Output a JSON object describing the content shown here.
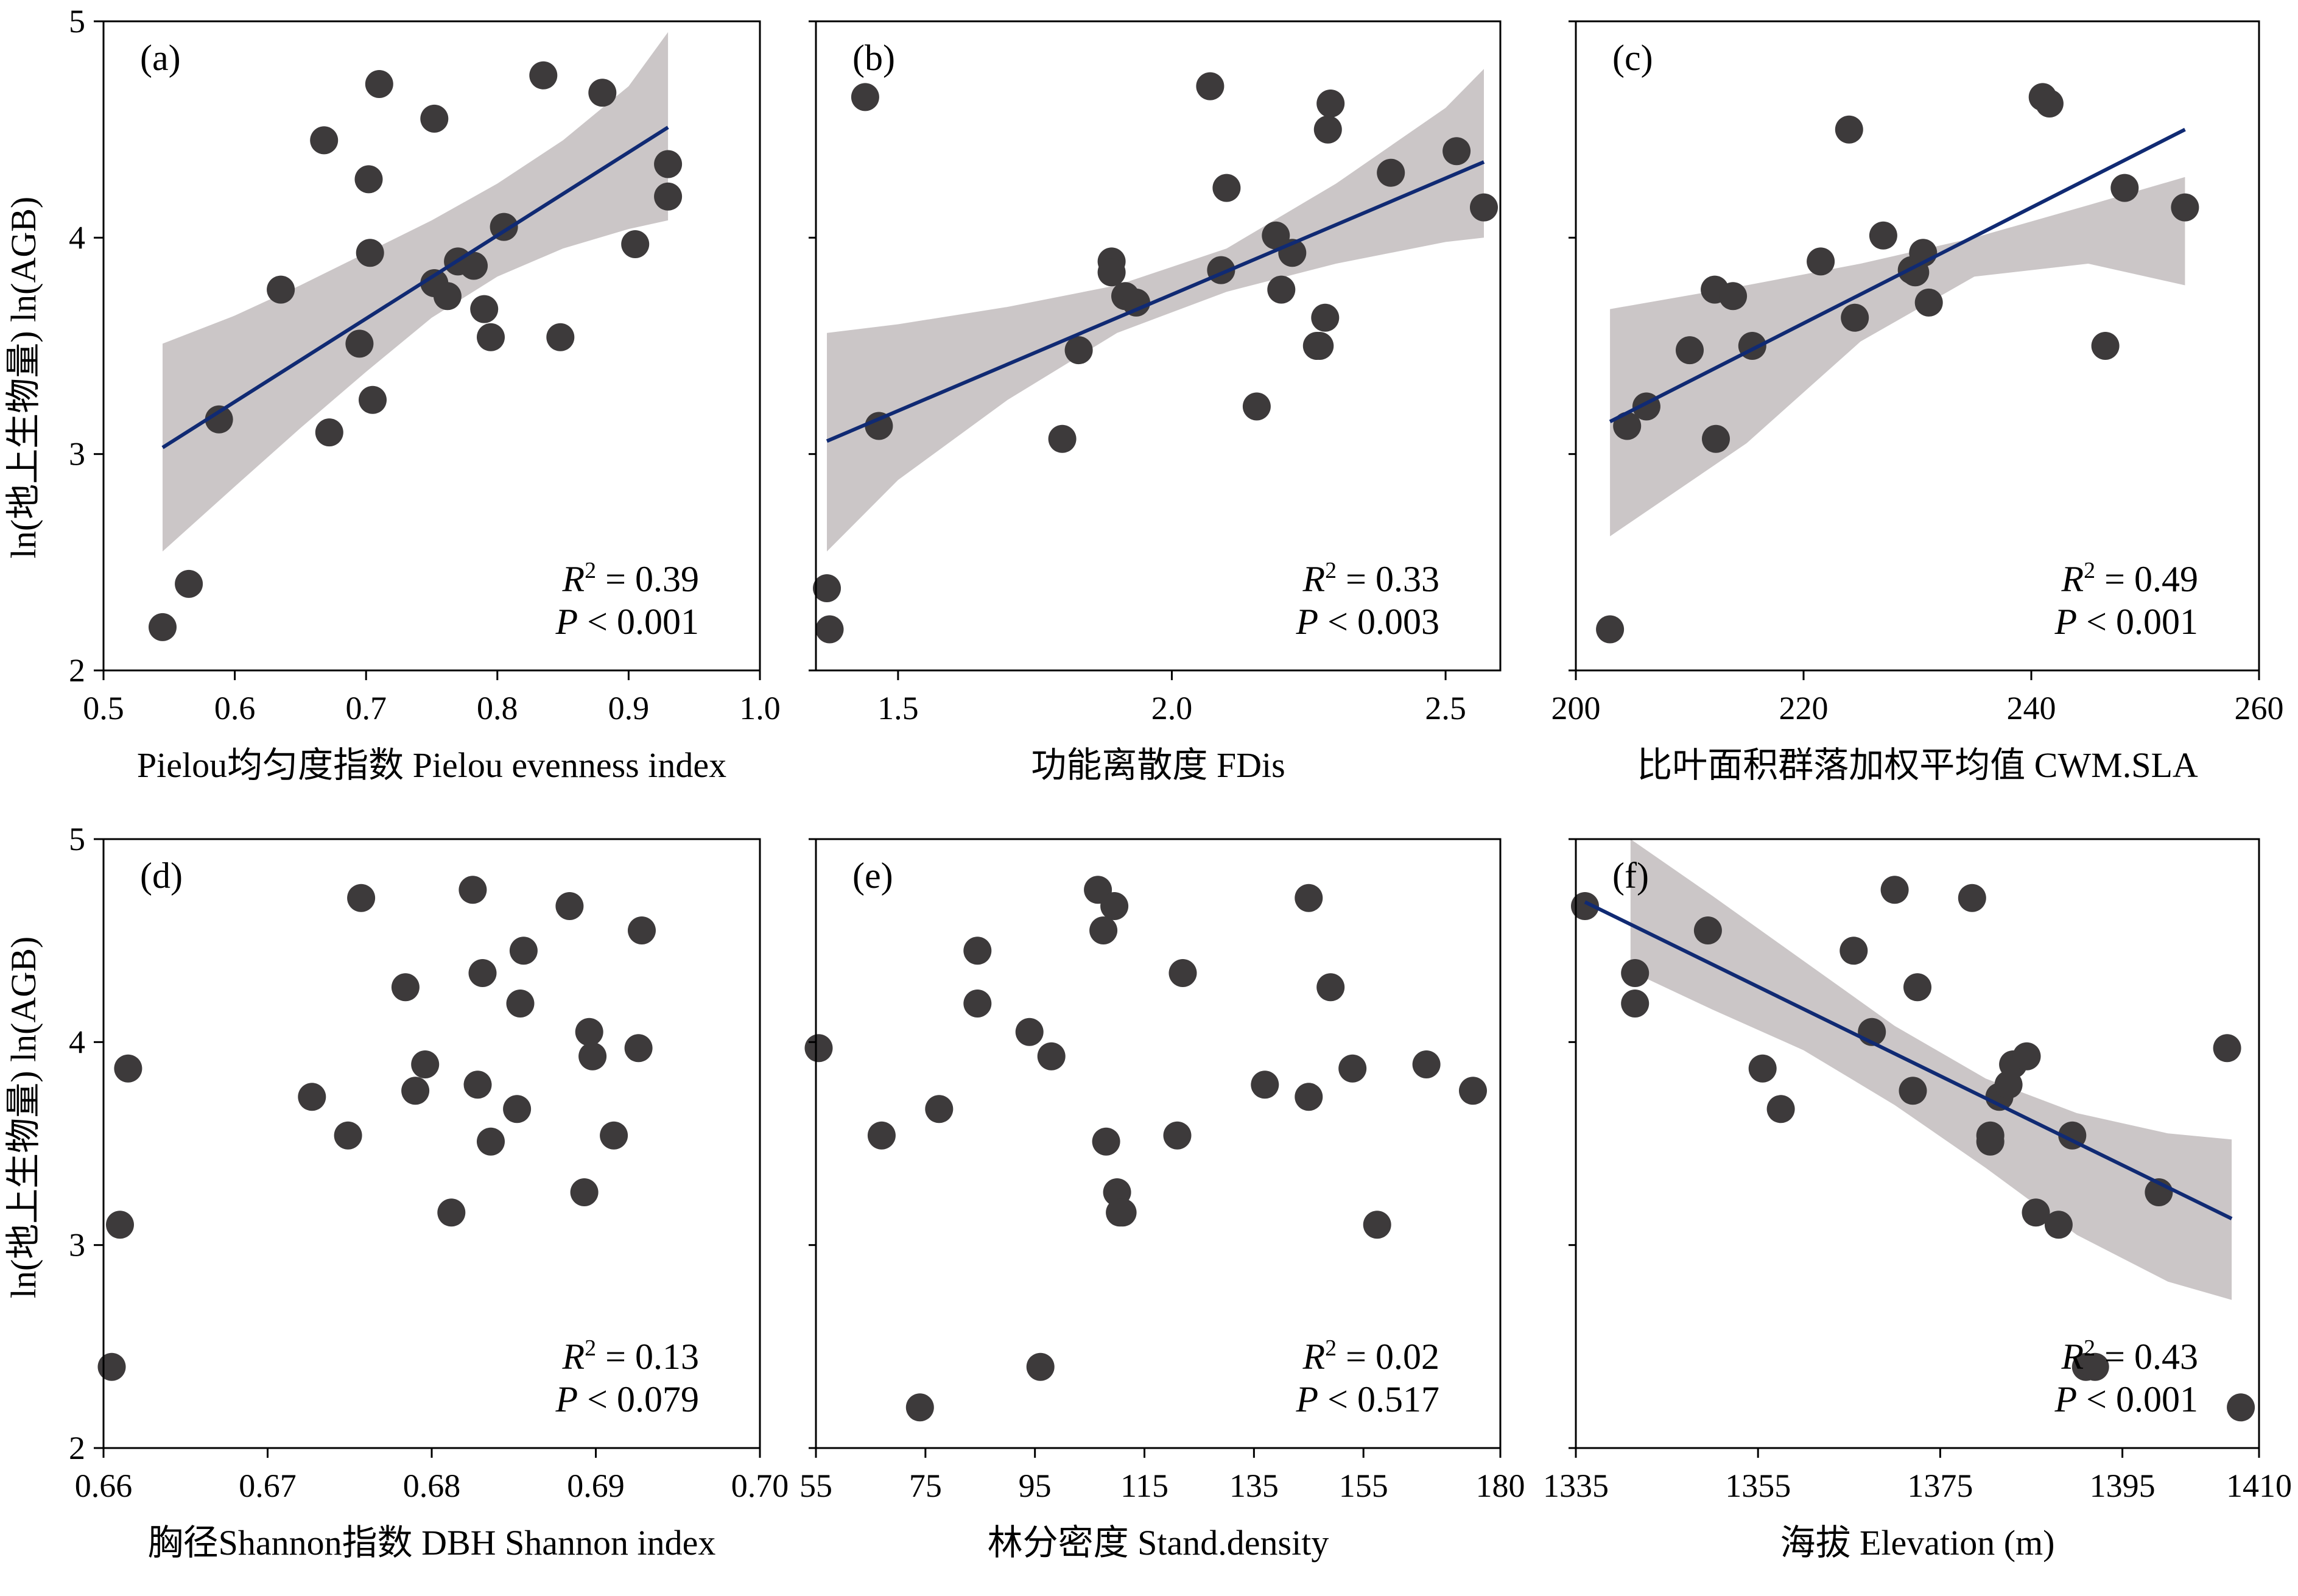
{
  "y_axis_label": "ln(地上生物量) ln(AGB)",
  "colors": {
    "point": "#3d3a3b",
    "line": "#102a73",
    "band": "#cbc6c7",
    "axis": "#000000"
  },
  "chart_data": [
    {
      "type": "scatter",
      "panel_label": "(a)",
      "xlabel": "Pielou均匀度指数 Pielou evenness index",
      "xlim": [
        0.5,
        1.0
      ],
      "xticks": [
        "0.5",
        "0.6",
        "0.7",
        "0.8",
        "0.9",
        "1.0"
      ],
      "ylim": [
        2,
        5
      ],
      "yticks": [
        "2",
        "3",
        "4",
        "5"
      ],
      "x": [
        0.545,
        0.565,
        0.588,
        0.635,
        0.668,
        0.672,
        0.695,
        0.702,
        0.703,
        0.705,
        0.71,
        0.752,
        0.752,
        0.762,
        0.77,
        0.782,
        0.79,
        0.795,
        0.805,
        0.835,
        0.848,
        0.88,
        0.905,
        0.93,
        0.93
      ],
      "y": [
        2.2,
        2.4,
        3.16,
        3.76,
        4.45,
        3.1,
        3.51,
        4.27,
        3.93,
        3.25,
        4.71,
        4.55,
        3.79,
        3.73,
        3.89,
        3.87,
        3.67,
        3.54,
        4.05,
        4.75,
        3.54,
        4.67,
        3.97,
        4.34,
        4.19
      ],
      "fit": {
        "x": [
          0.545,
          0.93
        ],
        "y": [
          3.03,
          4.51
        ]
      },
      "band_upper": [
        [
          0.545,
          3.51
        ],
        [
          0.6,
          3.64
        ],
        [
          0.65,
          3.78
        ],
        [
          0.7,
          3.93
        ],
        [
          0.75,
          4.08
        ],
        [
          0.8,
          4.25
        ],
        [
          0.85,
          4.45
        ],
        [
          0.9,
          4.7
        ],
        [
          0.93,
          4.95
        ]
      ],
      "band_lower": [
        [
          0.545,
          2.55
        ],
        [
          0.6,
          2.85
        ],
        [
          0.65,
          3.12
        ],
        [
          0.7,
          3.38
        ],
        [
          0.75,
          3.63
        ],
        [
          0.8,
          3.82
        ],
        [
          0.85,
          3.95
        ],
        [
          0.9,
          4.04
        ],
        [
          0.93,
          4.08
        ]
      ],
      "r2": "0.39",
      "p": "0.001"
    },
    {
      "type": "scatter",
      "panel_label": "(b)",
      "xlabel": "功能离散度 FDis",
      "xlim": [
        1.35,
        2.6
      ],
      "xticks": [
        "1.5",
        "2.0",
        "2.5"
      ],
      "ylim": [
        2,
        5
      ],
      "yticks": [],
      "x": [
        1.37,
        1.375,
        1.44,
        1.465,
        1.8,
        1.83,
        1.89,
        1.89,
        1.915,
        1.935,
        2.07,
        2.09,
        2.1,
        2.155,
        2.19,
        2.2,
        2.22,
        2.265,
        2.27,
        2.28,
        2.285,
        2.29,
        2.4,
        2.52,
        2.57
      ],
      "y": [
        2.38,
        2.19,
        4.65,
        3.13,
        3.07,
        3.48,
        3.89,
        3.84,
        3.73,
        3.7,
        4.7,
        3.85,
        4.23,
        3.22,
        4.01,
        3.76,
        3.93,
        3.5,
        3.5,
        3.63,
        4.5,
        4.62,
        4.3,
        4.4,
        4.14
      ],
      "fit": {
        "x": [
          1.37,
          2.57
        ],
        "y": [
          3.06,
          4.35
        ]
      },
      "band_upper": [
        [
          1.37,
          3.56
        ],
        [
          1.5,
          3.6
        ],
        [
          1.7,
          3.68
        ],
        [
          1.9,
          3.78
        ],
        [
          2.1,
          3.95
        ],
        [
          2.3,
          4.25
        ],
        [
          2.5,
          4.6
        ],
        [
          2.57,
          4.78
        ]
      ],
      "band_lower": [
        [
          1.37,
          2.55
        ],
        [
          1.5,
          2.88
        ],
        [
          1.7,
          3.25
        ],
        [
          1.9,
          3.56
        ],
        [
          2.1,
          3.75
        ],
        [
          2.3,
          3.88
        ],
        [
          2.5,
          3.98
        ],
        [
          2.57,
          4.0
        ]
      ],
      "r2": "0.33",
      "p": "0.003"
    },
    {
      "type": "scatter",
      "panel_label": "(c)",
      "xlabel": "比叶面积群落加权平均值 CWM.SLA",
      "xlim": [
        200,
        260
      ],
      "xticks": [
        "200",
        "220",
        "240",
        "260"
      ],
      "ylim": [
        2,
        5
      ],
      "yticks": [],
      "x": [
        203,
        204.5,
        206.2,
        210,
        212.2,
        212.3,
        213.8,
        215.5,
        221.5,
        224,
        224.5,
        227,
        229.5,
        229.8,
        230.5,
        231,
        241,
        241.6,
        246.5,
        248.2,
        253.5
      ],
      "y": [
        2.19,
        3.13,
        3.22,
        3.48,
        3.76,
        3.07,
        3.73,
        3.5,
        3.89,
        4.5,
        3.63,
        4.01,
        3.85,
        3.84,
        3.93,
        3.7,
        4.65,
        4.62,
        3.5,
        4.23,
        4.14
      ],
      "fit": {
        "x": [
          203,
          253.5
        ],
        "y": [
          3.15,
          4.5
        ]
      },
      "band_upper": [
        [
          203,
          3.67
        ],
        [
          215,
          3.78
        ],
        [
          225,
          3.88
        ],
        [
          235,
          4.0
        ],
        [
          245,
          4.15
        ],
        [
          253.5,
          4.28
        ]
      ],
      "band_lower": [
        [
          203,
          2.62
        ],
        [
          215,
          3.05
        ],
        [
          225,
          3.52
        ],
        [
          235,
          3.82
        ],
        [
          245,
          3.88
        ],
        [
          253.5,
          3.78
        ]
      ],
      "r2": "0.49",
      "p": "0.001"
    },
    {
      "type": "scatter",
      "panel_label": "(d)",
      "xlabel": "胸径Shannon指数 DBH Shannon index",
      "xlim": [
        0.66,
        0.7
      ],
      "xticks": [
        "0.66",
        "0.67",
        "0.68",
        "0.69",
        "0.70"
      ],
      "ylim": [
        2,
        5
      ],
      "yticks": [
        "2",
        "3",
        "4",
        "5"
      ],
      "x": [
        0.6605,
        0.661,
        0.6615,
        0.6727,
        0.6749,
        0.6757,
        0.6784,
        0.679,
        0.6796,
        0.6812,
        0.6825,
        0.6828,
        0.6831,
        0.6836,
        0.6852,
        0.6854,
        0.6856,
        0.6884,
        0.6893,
        0.6896,
        0.6898,
        0.6911,
        0.6926,
        0.6928
      ],
      "y": [
        2.4,
        3.1,
        3.87,
        3.73,
        3.54,
        4.71,
        4.27,
        3.76,
        3.89,
        3.16,
        4.75,
        3.79,
        4.34,
        3.51,
        3.67,
        4.19,
        4.45,
        4.67,
        3.26,
        4.05,
        3.93,
        3.54,
        3.97,
        4.55
      ],
      "fit": null,
      "r2": "0.13",
      "p": "0.079"
    },
    {
      "type": "scatter",
      "panel_label": "(e)",
      "xlabel": "林分密度 Stand.density",
      "xlim": [
        55,
        180
      ],
      "xticks": [
        "55",
        "75",
        "95",
        "115",
        "135",
        "155",
        "180"
      ],
      "ylim": [
        2,
        5
      ],
      "yticks": [],
      "x": [
        55.5,
        67,
        74,
        77.5,
        84.5,
        84.5,
        94,
        96,
        98,
        106.5,
        107.5,
        108,
        109.5,
        110,
        110.5,
        111,
        121,
        122,
        137,
        145,
        145,
        149,
        153,
        157.5,
        166.5,
        175
      ],
      "y": [
        3.97,
        3.54,
        2.2,
        3.67,
        4.45,
        4.19,
        4.05,
        2.4,
        3.93,
        4.75,
        4.55,
        3.51,
        4.67,
        3.26,
        3.16,
        3.16,
        3.54,
        4.34,
        3.79,
        4.71,
        3.73,
        4.27,
        3.87,
        3.1,
        3.89,
        3.76
      ],
      "fit": null,
      "r2": "0.02",
      "p": "0.517"
    },
    {
      "type": "scatter",
      "panel_label": "(f)",
      "xlabel": "海拔 Elevation (m)",
      "xlim": [
        1335,
        1410
      ],
      "xticks": [
        "1335",
        "1355",
        "1375",
        "1395",
        "1410"
      ],
      "ylim": [
        2,
        5
      ],
      "yticks": [],
      "x": [
        1336,
        1341.5,
        1341.5,
        1349.5,
        1355.5,
        1357.5,
        1365.5,
        1367.5,
        1370,
        1372,
        1372.5,
        1378.5,
        1380.5,
        1380.5,
        1381.5,
        1382.5,
        1383,
        1384.5,
        1385.5,
        1388,
        1389.5,
        1391,
        1392,
        1399,
        1406.5,
        1408
      ],
      "y": [
        4.67,
        4.34,
        4.19,
        4.55,
        3.87,
        3.67,
        4.45,
        4.05,
        4.75,
        3.76,
        4.27,
        4.71,
        3.54,
        3.51,
        3.73,
        3.79,
        3.89,
        3.93,
        3.16,
        3.1,
        3.54,
        2.4,
        2.4,
        3.26,
        3.97,
        2.2
      ],
      "fit": {
        "x": [
          1336,
          1407
        ],
        "y": [
          4.69,
          3.13
        ]
      },
      "band_upper": [
        [
          1341,
          5.0
        ],
        [
          1350,
          4.72
        ],
        [
          1360,
          4.4
        ],
        [
          1370,
          4.08
        ],
        [
          1380,
          3.82
        ],
        [
          1390,
          3.65
        ],
        [
          1400,
          3.55
        ],
        [
          1407,
          3.52
        ]
      ],
      "band_lower": [
        [
          1341,
          4.35
        ],
        [
          1350,
          4.16
        ],
        [
          1360,
          3.96
        ],
        [
          1370,
          3.69
        ],
        [
          1380,
          3.38
        ],
        [
          1390,
          3.05
        ],
        [
          1400,
          2.82
        ],
        [
          1407,
          2.73
        ]
      ],
      "r2": "0.43",
      "p": "0.001"
    }
  ]
}
